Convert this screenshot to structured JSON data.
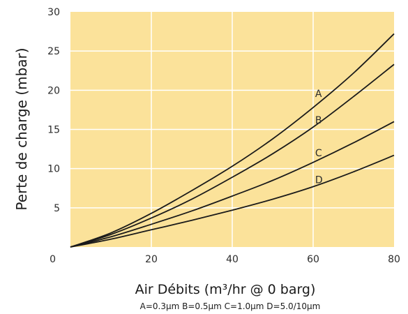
{
  "chart_data": {
    "type": "line",
    "xlabel": "Air Débits (m³/hr @ 0 barg)",
    "ylabel": "Perte de charge  (mbar)",
    "caption": "A=0.3µm B=0.5µm C=1.0µm D=5.0/10µm",
    "xlim": [
      0,
      80
    ],
    "ylim": [
      0,
      30
    ],
    "xticks": [
      20,
      40,
      60,
      80
    ],
    "yticks": [
      5,
      10,
      15,
      20,
      25,
      30
    ],
    "y_origin_label": "0",
    "grid": true,
    "colors": {
      "plot_bg": "#fbe29a",
      "grid": "#ffffff",
      "line": "#1a1a1a"
    },
    "series": [
      {
        "name": "A",
        "x": [
          0,
          10,
          20,
          30,
          40,
          50,
          60,
          70,
          80
        ],
        "y": [
          0,
          1.8,
          4.3,
          7.2,
          10.3,
          13.8,
          17.8,
          22.2,
          27.2
        ]
      },
      {
        "name": "B",
        "x": [
          0,
          10,
          20,
          30,
          40,
          50,
          60,
          70,
          80
        ],
        "y": [
          0,
          1.6,
          3.7,
          6.1,
          8.9,
          11.9,
          15.3,
          19.2,
          23.3
        ]
      },
      {
        "name": "C",
        "x": [
          0,
          10,
          20,
          30,
          40,
          50,
          60,
          70,
          80
        ],
        "y": [
          0,
          1.3,
          2.9,
          4.6,
          6.5,
          8.5,
          10.8,
          13.3,
          16.0
        ]
      },
      {
        "name": "D",
        "x": [
          0,
          10,
          20,
          30,
          40,
          50,
          60,
          70,
          80
        ],
        "y": [
          0,
          1.0,
          2.2,
          3.4,
          4.7,
          6.1,
          7.7,
          9.6,
          11.7
        ]
      }
    ],
    "series_label_positions": [
      {
        "name": "A",
        "x": 60.5,
        "y": 19.6
      },
      {
        "name": "B",
        "x": 60.5,
        "y": 16.2
      },
      {
        "name": "C",
        "x": 60.5,
        "y": 12.0
      },
      {
        "name": "D",
        "x": 60.5,
        "y": 8.6
      }
    ]
  }
}
